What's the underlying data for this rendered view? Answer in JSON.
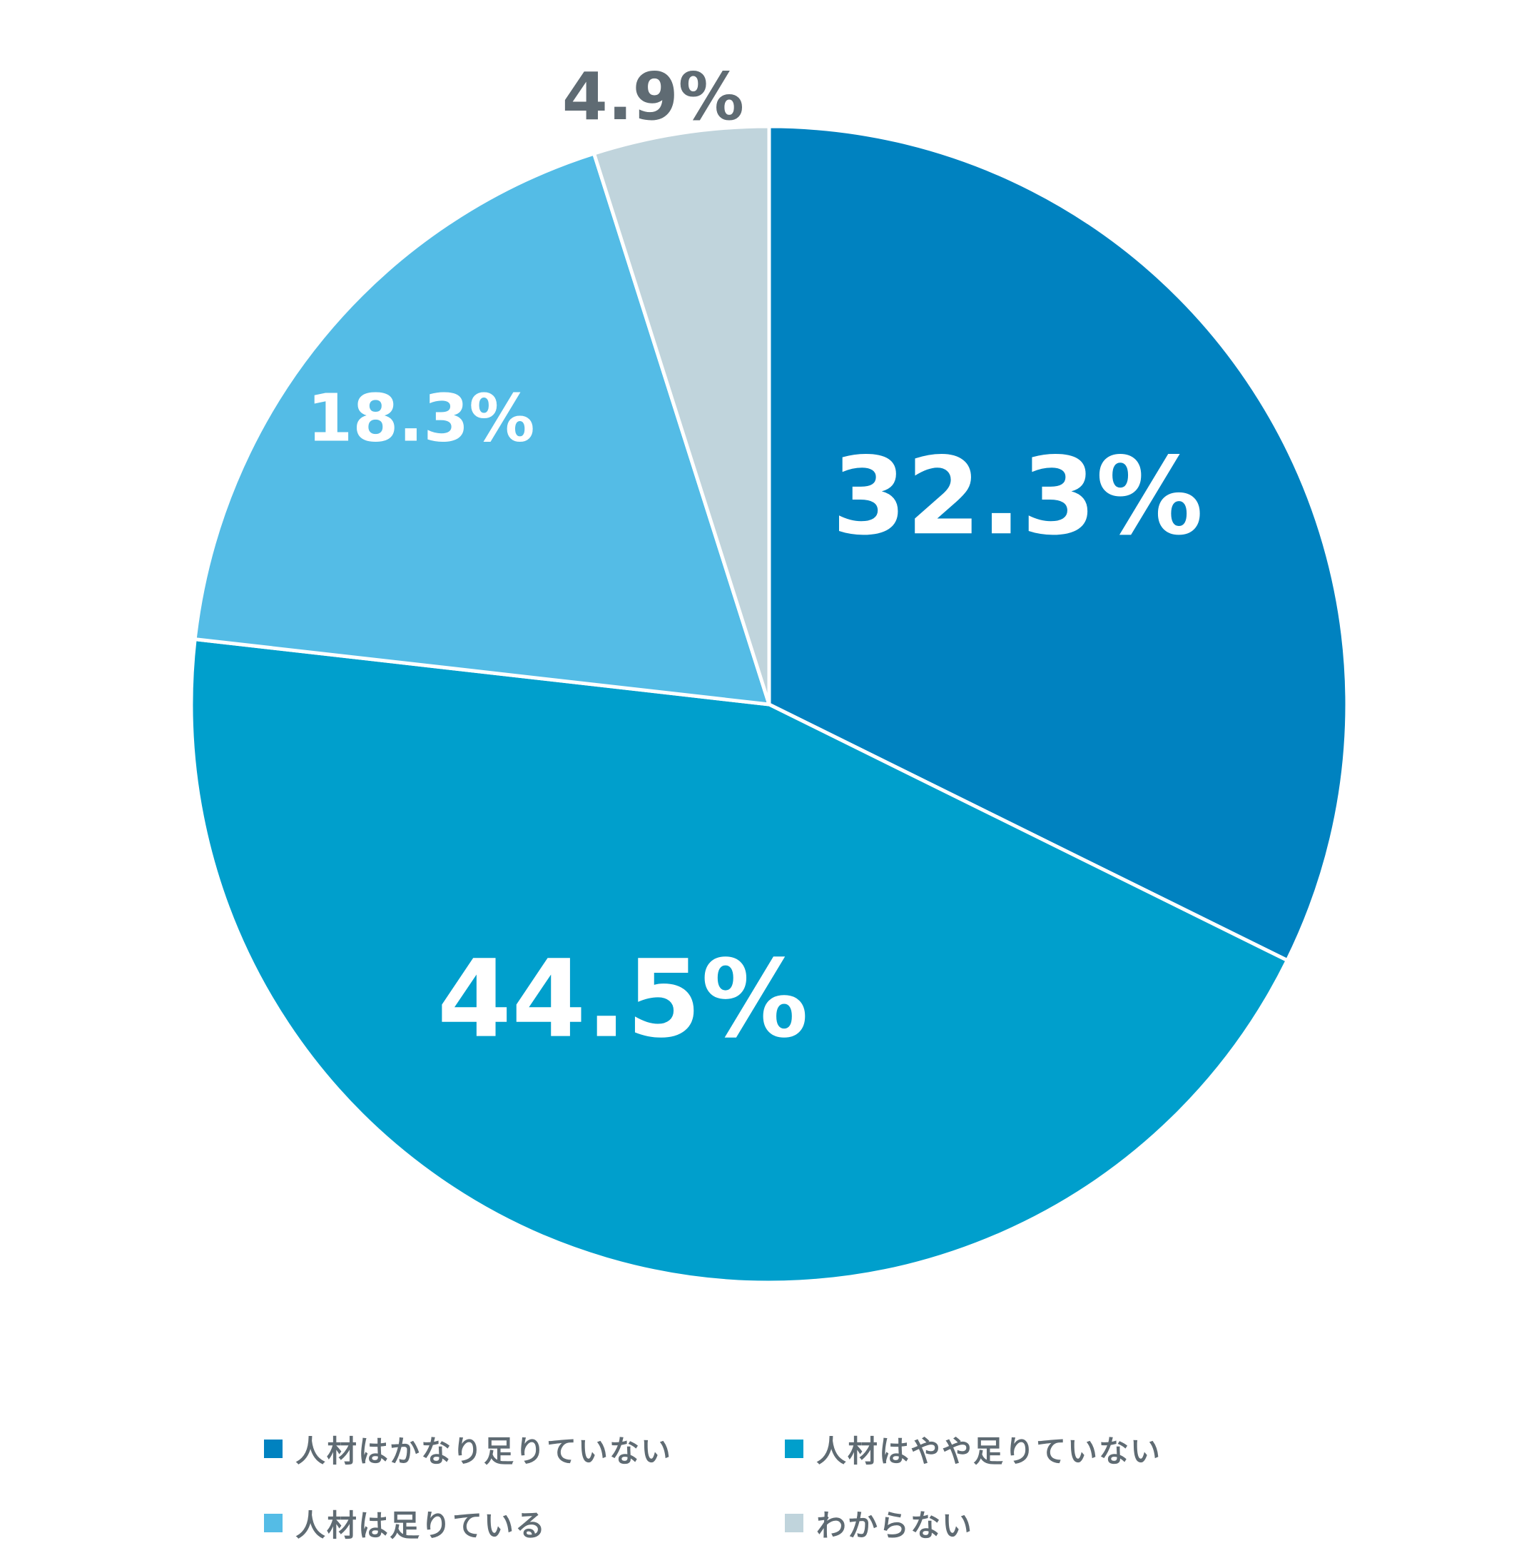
{
  "chart_data": {
    "type": "pie",
    "title": "",
    "slices": [
      {
        "name": "人材はかなり足りていない",
        "value": 32.3,
        "label": "32.3%",
        "color": "#0082C0",
        "label_color": "#FFFFFF"
      },
      {
        "name": "人材はやや足りていない",
        "value": 44.5,
        "label": "44.5%",
        "color": "#009FCC",
        "label_color": "#FFFFFF"
      },
      {
        "name": "人材は足りている",
        "value": 18.3,
        "label": "18.3%",
        "color": "#54BCE6",
        "label_color": "#FFFFFF"
      },
      {
        "name": "わからない",
        "value": 4.9,
        "label": "4.9%",
        "color": "#C0D4DC",
        "label_color": "#5F6B73"
      }
    ],
    "start_angle": "12 o'clock",
    "direction": "clockwise",
    "legend_position": "bottom"
  }
}
